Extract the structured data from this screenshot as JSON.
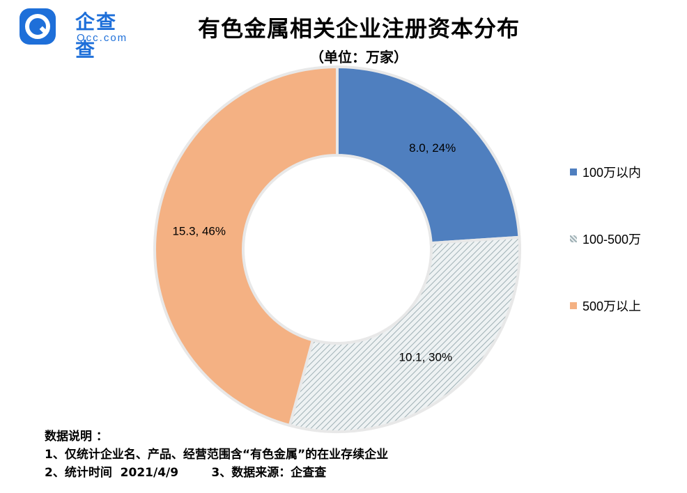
{
  "brand": {
    "name": "企查查",
    "sub": "Qcc.com"
  },
  "title": "有色金属相关企业注册资本分布",
  "subtitle": "（单位：万家）",
  "chart_data": {
    "type": "pie",
    "donut": true,
    "title": "有色金属相关企业注册资本分布",
    "subtitle": "（单位：万家）",
    "categories": [
      "100万以内",
      "100-500万",
      "500万以上"
    ],
    "values": [
      8.0,
      10.1,
      15.3
    ],
    "percents": [
      24,
      30,
      46
    ],
    "labels": [
      "8.0, 24%",
      "10.1, 30%",
      "15.3, 46%"
    ],
    "colors": [
      "#4f7fbf",
      "#b8c8cc",
      "#f4b183"
    ],
    "legend_position": "right"
  },
  "legend": [
    {
      "label": "100万以内",
      "color": "#4f7fbf"
    },
    {
      "label": "100-500万",
      "color": "#b8c8cc"
    },
    {
      "label": "500万以上",
      "color": "#f4b183"
    }
  ],
  "notes": {
    "heading": "数据说明 ：",
    "line1": "1、仅统计企业名、产品、经营范围含“有色金属”的在业存续企业",
    "line2": "2、统计时间  2021/4/9        3、数据来源：企查查"
  }
}
